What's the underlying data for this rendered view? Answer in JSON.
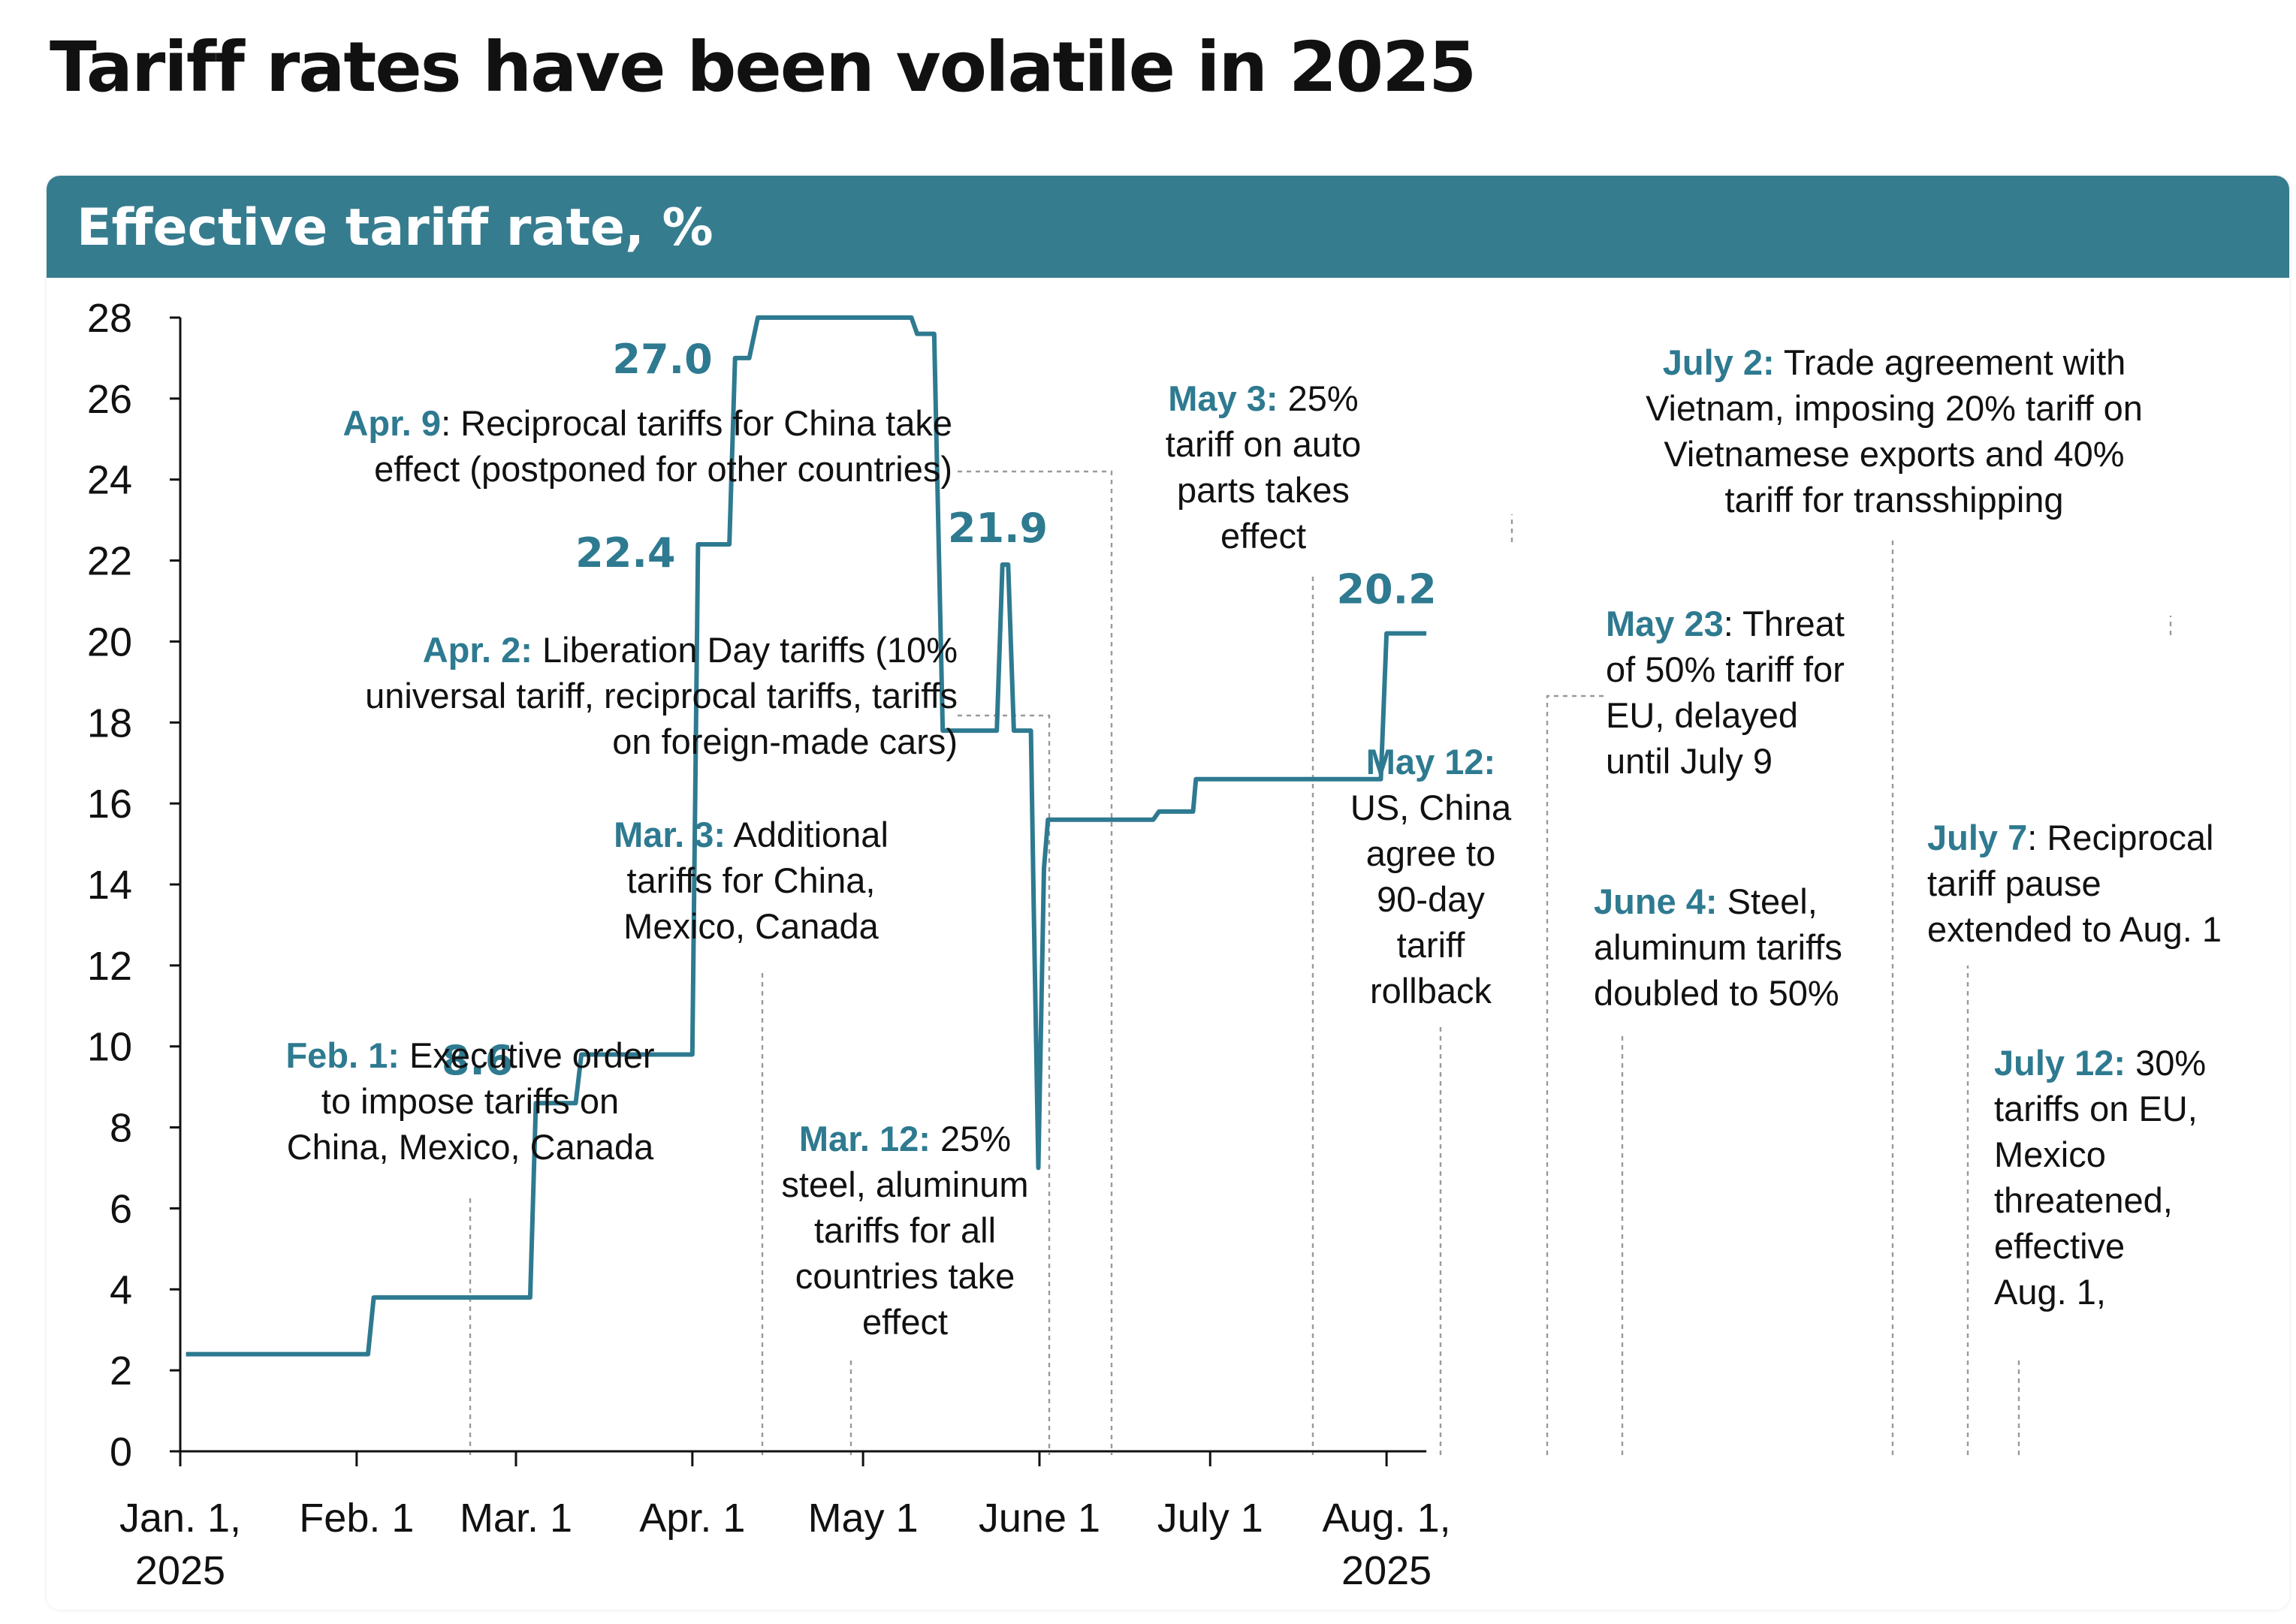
{
  "title": "Tariff rates have been volatile in 2025",
  "panel": {
    "title": "Effective tariff rate, %"
  },
  "colors": {
    "line": "#2E7A90",
    "accent": "#2E7A90",
    "header": "#367C8F",
    "text": "#111111",
    "guide": "#9A9A9A"
  },
  "chart_data": {
    "type": "line",
    "title": "Effective tariff rate, %",
    "xlabel": "",
    "ylabel": "Effective tariff rate, %",
    "ylim": [
      0,
      28
    ],
    "y_ticks": [
      0,
      2,
      4,
      6,
      8,
      10,
      12,
      14,
      16,
      18,
      20,
      22,
      24,
      26,
      28
    ],
    "x_ticks": [
      {
        "day": 0,
        "label": [
          "Jan. 1,",
          "2025"
        ]
      },
      {
        "day": 31,
        "label": [
          "Feb. 1"
        ]
      },
      {
        "day": 59,
        "label": [
          "Mar. 1"
        ]
      },
      {
        "day": 90,
        "label": [
          "Apr. 1"
        ]
      },
      {
        "day": 120,
        "label": [
          "May 1"
        ]
      },
      {
        "day": 151,
        "label": [
          "June 1"
        ]
      },
      {
        "day": 181,
        "label": [
          "July 1"
        ]
      },
      {
        "day": 212,
        "label": [
          "Aug. 1,",
          "2025"
        ]
      }
    ],
    "series": [
      {
        "name": "Effective tariff rate",
        "x_unit": "days since Jan. 1, 2025",
        "points": [
          [
            1,
            2.4
          ],
          [
            33,
            2.4
          ],
          [
            34,
            3.8
          ],
          [
            61.5,
            3.8
          ],
          [
            62.5,
            8.6
          ],
          [
            69.5,
            8.6
          ],
          [
            70.5,
            9.8
          ],
          [
            90,
            9.8
          ],
          [
            91,
            22.4
          ],
          [
            96.5,
            22.4
          ],
          [
            97.5,
            27.0
          ],
          [
            100,
            27.0
          ],
          [
            101.5,
            28.0
          ],
          [
            128.5,
            28.0
          ],
          [
            129.5,
            27.6
          ],
          [
            132.5,
            27.6
          ],
          [
            134,
            17.8
          ],
          [
            143.5,
            17.8
          ],
          [
            144.5,
            21.9
          ],
          [
            145.5,
            21.9
          ],
          [
            146.5,
            17.8
          ],
          [
            149.5,
            17.8
          ],
          [
            150,
            13.4
          ],
          [
            150.8,
            7.0
          ],
          [
            151.8,
            14.4
          ],
          [
            152.5,
            15.6
          ],
          [
            171,
            15.6
          ],
          [
            172,
            15.8
          ],
          [
            178,
            15.8
          ],
          [
            178.5,
            16.6
          ],
          [
            211,
            16.6
          ],
          [
            212,
            20.2
          ],
          [
            219,
            20.2
          ]
        ]
      }
    ],
    "value_labels": [
      {
        "text": "8.6",
        "day": 62.5,
        "value": 8.6
      },
      {
        "text": "22.4",
        "day": 91,
        "value": 22.4
      },
      {
        "text": "27.0",
        "day": 97.5,
        "value": 27.0
      },
      {
        "text": "21.9",
        "day": 145,
        "value": 21.9
      },
      {
        "text": "20.2",
        "day": 212,
        "value": 20.2
      }
    ],
    "annotations": [
      {
        "bold": "Feb. 1:",
        "lines": [
          "Feb. 1: Executive order",
          "to impose tariffs on",
          "China, Mexico, Canada"
        ],
        "anchor": "middle",
        "day": 31,
        "value": 6.3
      },
      {
        "bold": "Mar. 3:",
        "lines": [
          "Mar. 3: Additional",
          "tariffs for China,",
          "Mexico, Canada"
        ],
        "anchor": "middle",
        "day": 62,
        "value": 12
      },
      {
        "bold": "Mar. 12:",
        "lines": [
          "Mar. 12: 25%",
          "steel, aluminum",
          "tariffs for all",
          "countries take",
          "effect"
        ],
        "anchor": "middle",
        "day": 71,
        "value": 2.3
      },
      {
        "bold": "Apr. 2:",
        "lines": [
          "Apr. 2: Liberation Day tariffs (10%",
          "universal tariff, reciprocal tariffs, tariffs",
          "on foreign-made cars)"
        ],
        "anchor": "end",
        "day": 92,
        "value": 18.2
      },
      {
        "bold": "Apr. 9",
        "lines": [
          "Apr. 9: Reciprocal tariffs for China take",
          "effect (postponed for other countries)"
        ],
        "anchor": "end",
        "day": 99,
        "value": 24.2
      },
      {
        "bold": "May 3:",
        "lines": [
          "May 3: 25%",
          "tariff on auto",
          "parts takes",
          "effect"
        ],
        "anchor": "middle",
        "day": 122,
        "value": 21.6
      },
      {
        "bold": "May 12:",
        "lines": [
          "May 12:",
          "US, China",
          "agree to",
          "90-day",
          "tariff",
          "rollback"
        ],
        "anchor": "middle",
        "day": 131,
        "value": 10.5
      },
      {
        "bold": "May 23",
        "lines": [
          "May 23: Threat",
          "of 50% tariff for",
          "EU, delayed",
          "until July 9"
        ],
        "anchor": "start",
        "day": 142,
        "value": 18.6
      },
      {
        "bold": "June 4:",
        "lines": [
          "June 4: Steel,",
          "aluminum tariffs",
          "doubled to 50%"
        ],
        "anchor": "start",
        "day": 155,
        "value": 10.3
      },
      {
        "bold": "July 2:",
        "lines": [
          "July 2: Trade agreement with",
          "Vietnam, imposing 20% tariff on",
          "Vietnamese exports and 40%",
          "tariff for transshipping"
        ],
        "anchor": "middle",
        "day": 182,
        "value": 22.7
      },
      {
        "bold": "July 7",
        "lines": [
          "July 7: Reciprocal",
          "tariff pause",
          "extended to Aug. 1"
        ],
        "anchor": "start",
        "day": 190,
        "value": 12.3
      },
      {
        "bold": "July 12:",
        "lines": [
          "July 12: 30%",
          "tariffs on EU,",
          "Mexico",
          "threatened,",
          "effective",
          "Aug. 1,"
        ],
        "anchor": "start",
        "day": 195,
        "value": 2.3
      }
    ]
  }
}
